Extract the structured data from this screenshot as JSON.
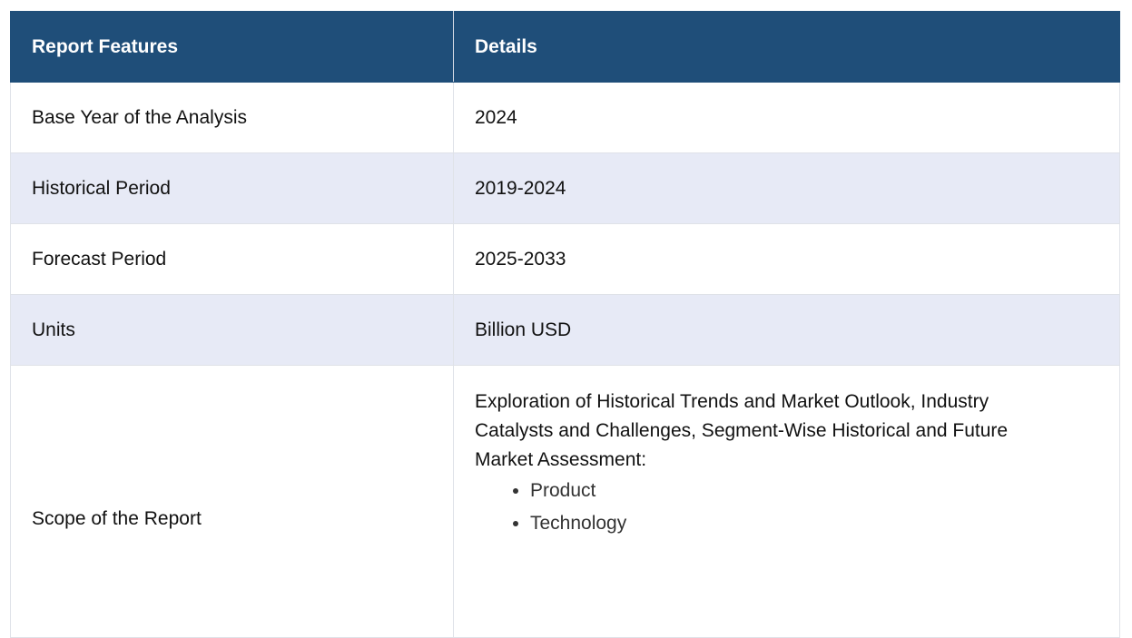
{
  "header": {
    "col1": "Report Features",
    "col2": "Details"
  },
  "rows": [
    {
      "feature": "Base Year of the Analysis",
      "detail": "2024"
    },
    {
      "feature": "Historical Period",
      "detail": "2019-2024"
    },
    {
      "feature": "Forecast Period",
      "detail": "2025-2033"
    },
    {
      "feature": "Units",
      "detail": "Billion USD"
    }
  ],
  "scope": {
    "feature": "Scope of the Report",
    "description": "Exploration of Historical Trends and Market Outlook, Industry Catalysts and Challenges, Segment-Wise Historical and Future Market Assessment:",
    "items": [
      "Product",
      "Technology"
    ]
  },
  "colors": {
    "header_bg": "#1f4e79",
    "alt_row_bg": "#e7eaf6"
  }
}
